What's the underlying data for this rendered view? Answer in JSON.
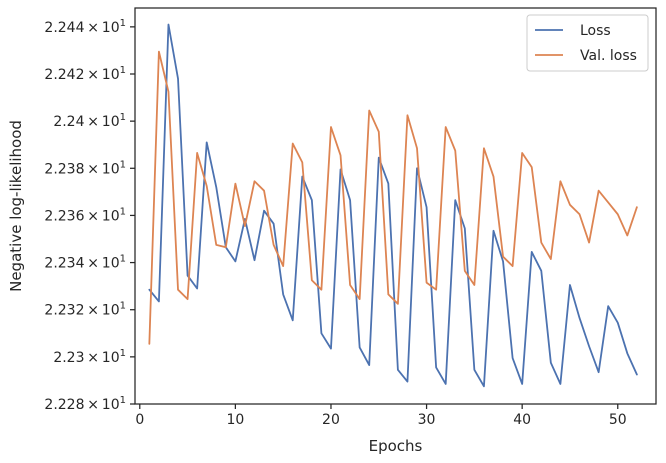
{
  "chart_data": {
    "type": "line",
    "xlabel": "Epochs",
    "ylabel": "Negative log-likelihood",
    "xlim": [
      -0.5,
      54.0
    ],
    "ylim": [
      22.28,
      22.448
    ],
    "x_ticks": [
      0,
      10,
      20,
      30,
      40,
      50
    ],
    "x_tick_labels": [
      "0",
      "10",
      "20",
      "30",
      "40",
      "50"
    ],
    "y_ticks": [
      22.28,
      22.3,
      22.32,
      22.34,
      22.36,
      22.38,
      22.4,
      22.42,
      22.44
    ],
    "y_tick_labels": [
      {
        "mantissa": "2.228",
        "exp": "1"
      },
      {
        "mantissa": "2.23",
        "exp": "1"
      },
      {
        "mantissa": "2.232",
        "exp": "1"
      },
      {
        "mantissa": "2.234",
        "exp": "1"
      },
      {
        "mantissa": "2.236",
        "exp": "1"
      },
      {
        "mantissa": "2.238",
        "exp": "1"
      },
      {
        "mantissa": "2.24",
        "exp": "1"
      },
      {
        "mantissa": "2.242",
        "exp": "1"
      },
      {
        "mantissa": "2.244",
        "exp": "1"
      }
    ],
    "legend_position": "top-right",
    "x": [
      1,
      2,
      3,
      4,
      5,
      6,
      7,
      8,
      9,
      10,
      11,
      12,
      13,
      14,
      15,
      16,
      17,
      18,
      19,
      20,
      21,
      22,
      23,
      24,
      25,
      26,
      27,
      28,
      29,
      30,
      31,
      32,
      33,
      34,
      35,
      36,
      37,
      38,
      39,
      40,
      41,
      42,
      43,
      44,
      45,
      46,
      47,
      48,
      49,
      50,
      51,
      52
    ],
    "series": [
      {
        "name": "Loss",
        "color": "#4c72b0",
        "values": [
          22.3285,
          22.3235,
          22.441,
          22.418,
          22.3345,
          22.329,
          22.391,
          22.372,
          22.3465,
          22.3405,
          22.3585,
          22.341,
          22.362,
          22.3565,
          22.3265,
          22.3155,
          22.3765,
          22.3665,
          22.31,
          22.3035,
          22.3795,
          22.3665,
          22.304,
          22.2965,
          22.3845,
          22.3735,
          22.2945,
          22.2895,
          22.38,
          22.3635,
          22.2955,
          22.2885,
          22.3665,
          22.3545,
          22.2945,
          22.2875,
          22.3535,
          22.3405,
          22.2995,
          22.2885,
          22.3445,
          22.3365,
          22.2975,
          22.2885,
          22.3305,
          22.3165,
          22.3045,
          22.2935,
          22.3215,
          22.3145,
          22.3015,
          22.2925
        ]
      },
      {
        "name": "Val. loss",
        "color": "#dd8452",
        "values": [
          22.3055,
          22.4295,
          22.4125,
          22.3285,
          22.3245,
          22.3865,
          22.3725,
          22.3475,
          22.3465,
          22.3735,
          22.3555,
          22.3745,
          22.3705,
          22.3475,
          22.3385,
          22.3905,
          22.3825,
          22.3325,
          22.3285,
          22.3975,
          22.3855,
          22.3305,
          22.3245,
          22.4045,
          22.3955,
          22.3265,
          22.3225,
          22.4025,
          22.3885,
          22.3315,
          22.3285,
          22.3975,
          22.3875,
          22.3365,
          22.3305,
          22.3885,
          22.3765,
          22.3425,
          22.3385,
          22.3865,
          22.3805,
          22.3485,
          22.3415,
          22.3745,
          22.3645,
          22.3605,
          22.3485,
          22.3705,
          22.3655,
          22.3605,
          22.3515,
          22.3635
        ]
      }
    ]
  }
}
